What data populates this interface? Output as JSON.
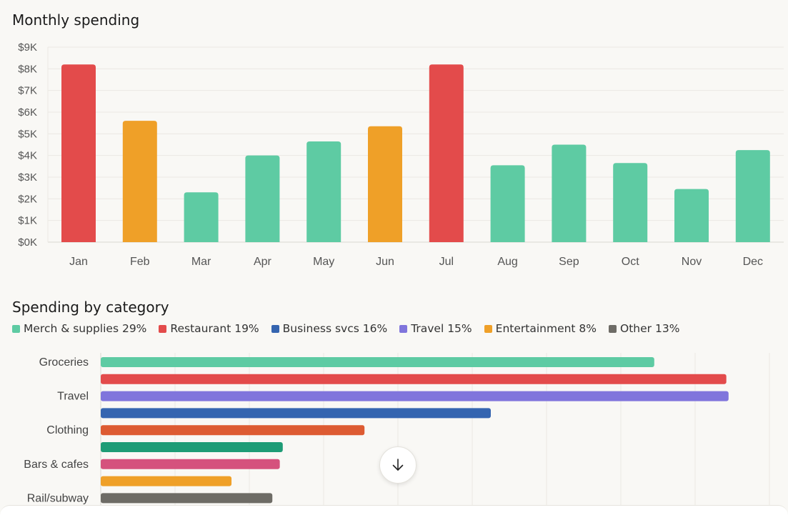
{
  "monthly": {
    "title": "Monthly spending",
    "chart_data": {
      "type": "bar",
      "title": "Monthly spending",
      "categories": [
        "Jan",
        "Feb",
        "Mar",
        "Apr",
        "May",
        "Jun",
        "Jul",
        "Aug",
        "Sep",
        "Oct",
        "Nov",
        "Dec"
      ],
      "values": [
        8200,
        5600,
        2300,
        4000,
        4650,
        5350,
        8200,
        3550,
        4500,
        3650,
        2450,
        4250
      ],
      "bar_colors": [
        "#e34b4b",
        "#efa028",
        "#5ecba3",
        "#5ecba3",
        "#5ecba3",
        "#efa028",
        "#e34b4b",
        "#5ecba3",
        "#5ecba3",
        "#5ecba3",
        "#5ecba3",
        "#5ecba3"
      ],
      "ylim": [
        0,
        9000
      ],
      "yticks": [
        0,
        1000,
        2000,
        3000,
        4000,
        5000,
        6000,
        7000,
        8000,
        9000
      ],
      "ytick_labels": [
        "$0K",
        "$1K",
        "$2K",
        "$3K",
        "$4K",
        "$5K",
        "$6K",
        "$7K",
        "$8K",
        "$9K"
      ],
      "xlabel": "",
      "ylabel": "",
      "grid": true
    }
  },
  "category": {
    "title": "Spending by category",
    "legend": [
      {
        "label": "Merch & supplies 29%",
        "color": "#5ecba3"
      },
      {
        "label": "Restaurant 19%",
        "color": "#e34b4b"
      },
      {
        "label": "Business svcs 16%",
        "color": "#3565b0"
      },
      {
        "label": "Travel 15%",
        "color": "#8075dc"
      },
      {
        "label": "Entertainment 8%",
        "color": "#efa028"
      },
      {
        "label": "Other 13%",
        "color": "#6e6c66"
      }
    ],
    "chart_data": {
      "type": "bar",
      "orientation": "horizontal",
      "title": "Spending by category",
      "labels": [
        "Groceries",
        "",
        "Travel",
        "",
        "Clothing",
        "",
        "Bars & cafes",
        "",
        "Rail/subway"
      ],
      "values": [
        74.5,
        84.2,
        84.5,
        52.5,
        35.5,
        24.5,
        24.1,
        17.6,
        23.1
      ],
      "bar_colors": [
        "#5ecba3",
        "#e34b4b",
        "#8075dc",
        "#3565b0",
        "#dd5b32",
        "#1e9c76",
        "#d5527d",
        "#efa028",
        "#6e6c66"
      ],
      "xlim": [
        0,
        90
      ],
      "grid": true
    }
  },
  "scroll_button": {
    "icon": "arrow-down-icon"
  }
}
